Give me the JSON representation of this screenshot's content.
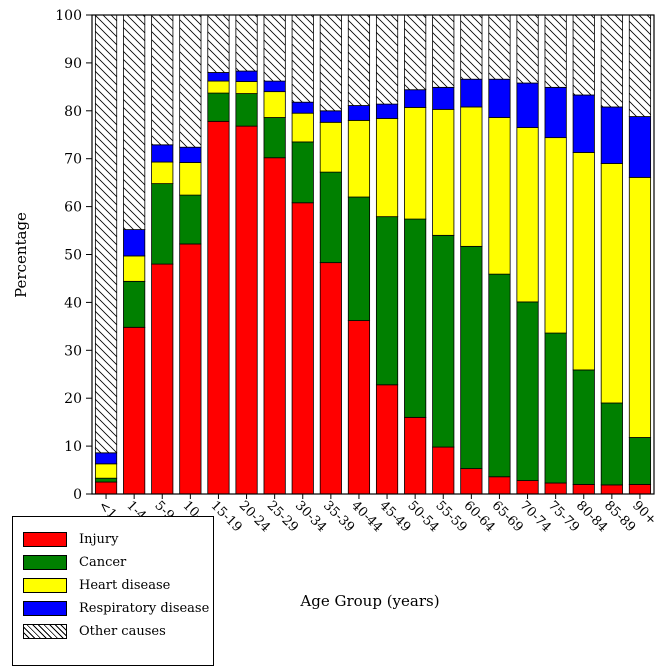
{
  "chart_data": {
    "type": "bar",
    "stacked": true,
    "title": "",
    "xlabel": "Age Group (years)",
    "ylabel": "Percentage",
    "ylim": [
      0,
      100
    ],
    "yticks": [
      0,
      10,
      20,
      30,
      40,
      50,
      60,
      70,
      80,
      90,
      100
    ],
    "grid": false,
    "legend_position": "bottom-left",
    "categories": [
      "<1",
      "1-4",
      "5-9",
      "10-14",
      "15-19",
      "20-24",
      "25-29",
      "30-34",
      "35-39",
      "40-44",
      "45-49",
      "50-54",
      "55-59",
      "60-64",
      "65-69",
      "70-74",
      "75-79",
      "80-84",
      "85-89",
      "90+"
    ],
    "series": [
      {
        "name": "Injury",
        "color": "#ff0000",
        "values": [
          2.5,
          34.8,
          48,
          52.2,
          77.8,
          76.8,
          70.2,
          60.8,
          48.3,
          36.2,
          22.8,
          16,
          9.8,
          5.3,
          3.6,
          2.8,
          2.3,
          2,
          1.9,
          2
        ]
      },
      {
        "name": "Cancer",
        "color": "#008000",
        "values": [
          0.8,
          9.6,
          16.8,
          10.2,
          5.9,
          6.8,
          8.4,
          12.7,
          18.9,
          25.8,
          35.1,
          41.4,
          44.2,
          46.4,
          42.3,
          37.3,
          31.3,
          23.9,
          17.1,
          9.8
        ]
      },
      {
        "name": "Heart disease",
        "color": "#ffff00",
        "values": [
          3,
          5.3,
          4.5,
          6.8,
          2.5,
          2.5,
          5.4,
          6,
          10.4,
          16,
          20.5,
          23.3,
          26.3,
          29.1,
          32.7,
          36.4,
          40.8,
          45.4,
          50,
          54.3
        ]
      },
      {
        "name": "Respiratory disease",
        "color": "#0000ff",
        "values": [
          2.3,
          5.5,
          3.6,
          3.2,
          1.8,
          2.2,
          2.2,
          2.3,
          2.4,
          3.1,
          3,
          3.7,
          4.6,
          5.8,
          8,
          9.3,
          10.5,
          12,
          11.8,
          12.7
        ]
      },
      {
        "name": "Other causes",
        "color": "hatch",
        "values": [
          91.4,
          44.8,
          27.1,
          27.6,
          12,
          11.7,
          13.8,
          18.2,
          20,
          18.9,
          18.6,
          15.6,
          15.1,
          13.4,
          13.4,
          14.2,
          15.1,
          16.7,
          19.2,
          21.2
        ]
      }
    ]
  }
}
